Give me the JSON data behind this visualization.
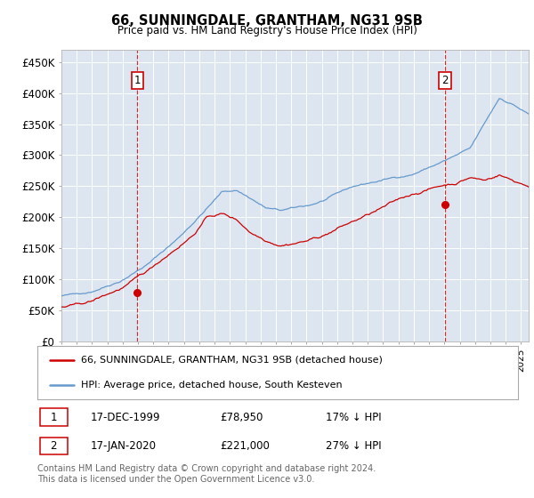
{
  "title": "66, SUNNINGDALE, GRANTHAM, NG31 9SB",
  "subtitle": "Price paid vs. HM Land Registry's House Price Index (HPI)",
  "ylabel_ticks": [
    "£0",
    "£50K",
    "£100K",
    "£150K",
    "£200K",
    "£250K",
    "£300K",
    "£350K",
    "£400K",
    "£450K"
  ],
  "ytick_values": [
    0,
    50000,
    100000,
    150000,
    200000,
    250000,
    300000,
    350000,
    400000,
    450000
  ],
  "ylim": [
    0,
    470000
  ],
  "xlim_start": 1995.0,
  "xlim_end": 2025.5,
  "sale1_x": 1999.96,
  "sale1_y": 78950,
  "sale2_x": 2020.04,
  "sale2_y": 221000,
  "sale_color": "#cc0000",
  "hpi_color": "#6699cc",
  "background_color": "#dde6f0",
  "legend_label1": "66, SUNNINGDALE, GRANTHAM, NG31 9SB (detached house)",
  "legend_label2": "HPI: Average price, detached house, South Kesteven",
  "annotation1_label": "1",
  "annotation2_label": "2",
  "table_row1": [
    "1",
    "17-DEC-1999",
    "£78,950",
    "17% ↓ HPI"
  ],
  "table_row2": [
    "2",
    "17-JAN-2020",
    "£221,000",
    "27% ↓ HPI"
  ],
  "footer": "Contains HM Land Registry data © Crown copyright and database right 2024.\nThis data is licensed under the Open Government Licence v3.0."
}
